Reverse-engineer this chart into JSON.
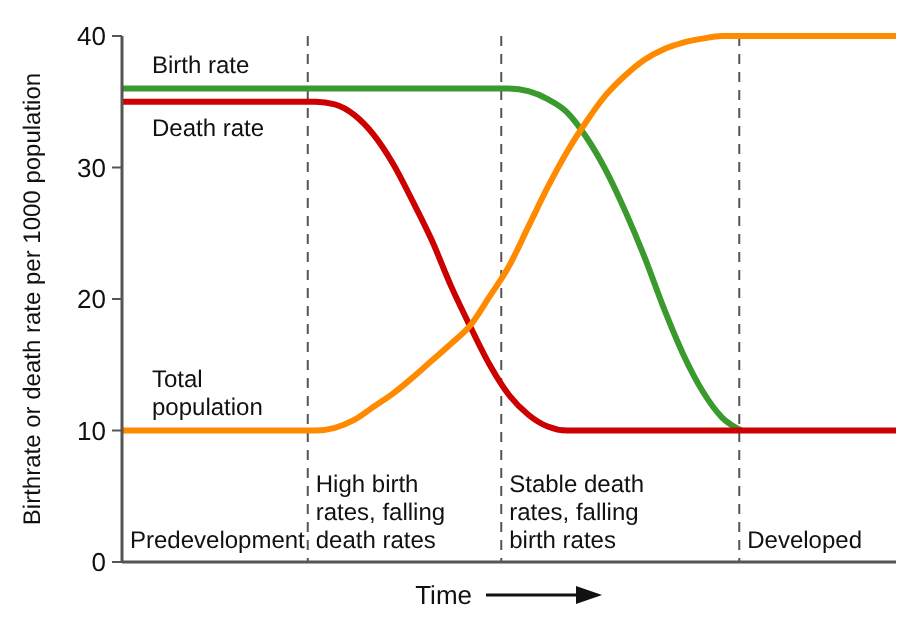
{
  "chart_data": {
    "type": "line",
    "xlabel": "Time",
    "ylabel": "Birthrate or death rate per 1000 population",
    "categories": [
      null,
      null,
      null,
      null,
      null,
      null,
      null,
      null,
      null,
      null,
      null,
      null,
      null,
      null,
      null,
      null,
      null,
      null,
      null,
      null,
      null,
      null,
      null,
      null,
      null,
      null,
      null,
      null,
      null,
      null,
      null,
      null,
      null,
      null,
      null,
      null,
      null,
      null,
      null,
      null,
      null
    ],
    "series": [
      {
        "name": "Birth rate",
        "color": "#3a9a2e",
        "values": [
          36,
          36,
          36,
          36,
          36,
          36,
          36,
          36,
          36,
          36,
          36,
          36,
          36,
          36,
          36,
          36,
          36,
          36,
          36,
          36,
          36,
          35.8,
          35.2,
          34.2,
          32.3,
          29.8,
          26.7,
          23.2,
          19.3,
          15.8,
          13,
          11,
          10,
          null,
          null,
          null,
          null,
          null,
          null,
          null,
          null
        ]
      },
      {
        "name": "Death rate",
        "color": "#cc0000",
        "values": [
          35,
          35,
          35,
          35,
          35,
          35,
          35,
          35,
          35,
          35,
          35,
          34.8,
          34,
          32.5,
          30.3,
          27.5,
          24.5,
          21,
          17.9,
          15,
          12.7,
          11.2,
          10.3,
          10,
          10,
          10,
          10,
          10,
          10,
          10,
          10,
          10,
          10,
          10,
          10,
          10,
          10,
          10,
          10,
          10,
          10
        ]
      },
      {
        "name": "Total population",
        "color": "#ff8a00",
        "values": [
          10,
          10,
          10,
          10,
          10,
          10,
          10,
          10,
          10,
          10,
          10,
          10.2,
          10.8,
          11.8,
          12.8,
          14,
          15.3,
          16.6,
          18,
          20.2,
          22.5,
          25.5,
          28.5,
          31.2,
          33.5,
          35.5,
          37,
          38.2,
          39,
          39.5,
          39.8,
          40,
          40,
          40,
          40,
          40,
          40,
          40,
          40,
          40,
          40
        ]
      }
    ],
    "ylim": [
      0,
      40
    ],
    "yticks": [
      0,
      10,
      20,
      30,
      40
    ],
    "annotations": [
      "Predevelopment",
      "High birth rates, falling death rates",
      "Stable death rates, falling birth rates",
      "Developed"
    ],
    "legend": false,
    "grid": false,
    "marker": "none",
    "line_style": "solid"
  }
}
